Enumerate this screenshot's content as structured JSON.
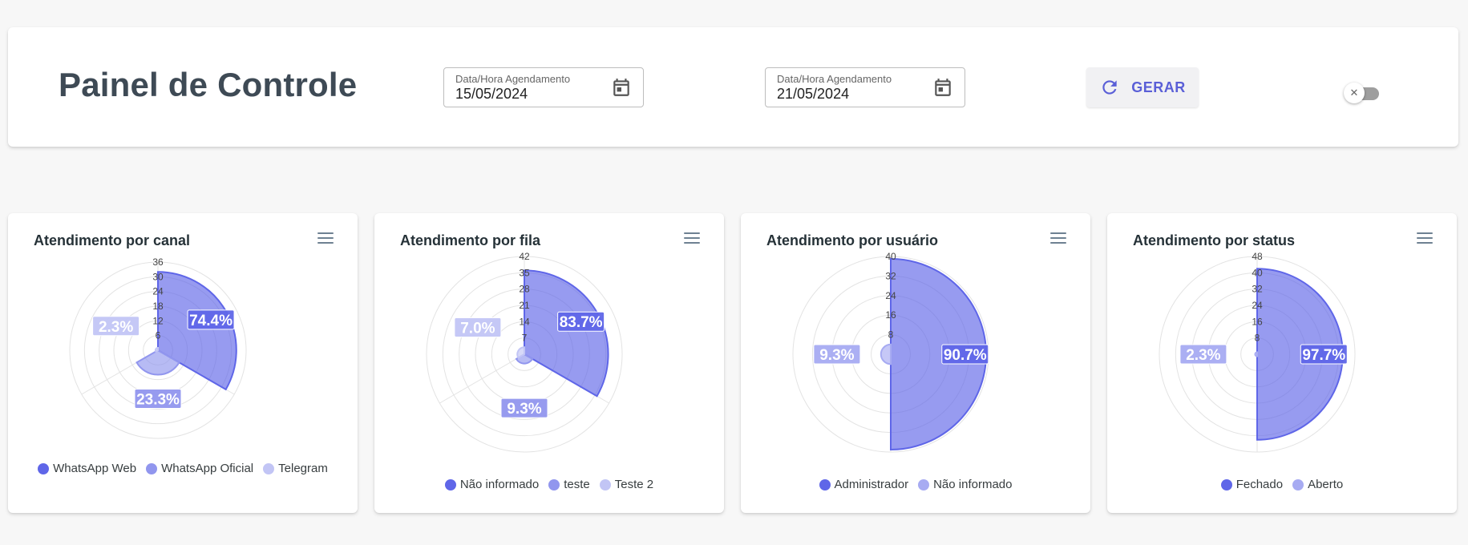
{
  "header": {
    "title": "Painel de Controle",
    "date_start": {
      "label": "Data/Hora Agendamento",
      "value": "15/05/2024"
    },
    "date_end": {
      "label": "Data/Hora Agendamento",
      "value": "21/05/2024"
    },
    "gerar_label": "GERAR",
    "toggle_symbol": "✕",
    "calendar_icon": "calendar-icon",
    "refresh_icon": "refresh-icon"
  },
  "chart_data": [
    {
      "type": "polar-area",
      "title": "Atendimento por canal",
      "categories": [
        "WhatsApp Web",
        "WhatsApp Oficial",
        "Telegram"
      ],
      "values": [
        32,
        10,
        1
      ],
      "percent_labels": [
        "74.4%",
        "23.3%",
        "2.3%"
      ],
      "ticks": [
        "6",
        "12",
        "18",
        "24",
        "30",
        "36"
      ],
      "rmax": 36,
      "colors": [
        "#5f66e8",
        "#9196ee",
        "#c2c5f5"
      ],
      "legend": "bottom"
    },
    {
      "type": "polar-area",
      "title": "Atendimento por fila",
      "categories": [
        "Não informado",
        "teste",
        "Teste 2"
      ],
      "values": [
        36,
        4,
        3
      ],
      "percent_labels": [
        "83.7%",
        "9.3%",
        "7.0%"
      ],
      "ticks": [
        "7",
        "14",
        "21",
        "28",
        "35",
        "42"
      ],
      "rmax": 42,
      "colors": [
        "#5f66e8",
        "#9196ee",
        "#c2c5f5"
      ],
      "legend": "bottom"
    },
    {
      "type": "polar-area",
      "title": "Atendimento por usuário",
      "categories": [
        "Administrador",
        "Não informado"
      ],
      "values": [
        39,
        4
      ],
      "percent_labels": [
        "90.7%",
        "9.3%"
      ],
      "ticks": [
        "8",
        "16",
        "24",
        "32",
        "40"
      ],
      "rmax": 40,
      "colors": [
        "#5f66e8",
        "#a7abf2"
      ],
      "legend": "bottom"
    },
    {
      "type": "polar-area",
      "title": "Atendimento por status",
      "categories": [
        "Fechado",
        "Aberto"
      ],
      "values": [
        42,
        1
      ],
      "percent_labels": [
        "97.7%",
        "2.3%"
      ],
      "ticks": [
        "8",
        "16",
        "24",
        "32",
        "40",
        "48"
      ],
      "rmax": 48,
      "colors": [
        "#5f66e8",
        "#a7abf2"
      ],
      "legend": "bottom"
    }
  ]
}
